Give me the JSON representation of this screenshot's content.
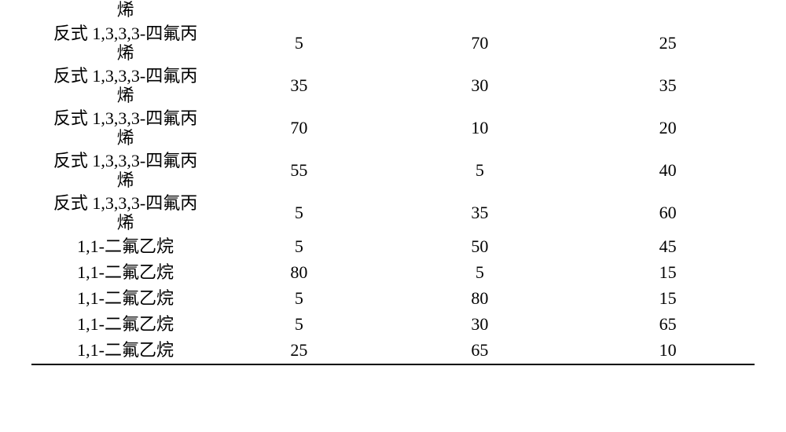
{
  "table": {
    "font_size_pt": 16,
    "colors": {
      "text": "#000000",
      "background": "#ffffff",
      "rule": "#000000"
    },
    "column_widths_pct": [
      26,
      22,
      28,
      24
    ],
    "partial_first_row_text": "烯",
    "compound_a": "反式 1,3,3,3-四氟丙\n烯",
    "compound_b": "1,1-二氟乙烷",
    "rows": [
      {
        "compound_key": "a",
        "v1": "5",
        "v2": "70",
        "v3": "25"
      },
      {
        "compound_key": "a",
        "v1": "35",
        "v2": "30",
        "v3": "35"
      },
      {
        "compound_key": "a",
        "v1": "70",
        "v2": "10",
        "v3": "20"
      },
      {
        "compound_key": "a",
        "v1": "55",
        "v2": "5",
        "v3": "40"
      },
      {
        "compound_key": "a",
        "v1": "5",
        "v2": "35",
        "v3": "60"
      },
      {
        "compound_key": "b",
        "v1": "5",
        "v2": "50",
        "v3": "45"
      },
      {
        "compound_key": "b",
        "v1": "80",
        "v2": "5",
        "v3": "15"
      },
      {
        "compound_key": "b",
        "v1": "5",
        "v2": "80",
        "v3": "15"
      },
      {
        "compound_key": "b",
        "v1": "5",
        "v2": "30",
        "v3": "65"
      },
      {
        "compound_key": "b",
        "v1": "25",
        "v2": "65",
        "v3": "10"
      }
    ]
  }
}
